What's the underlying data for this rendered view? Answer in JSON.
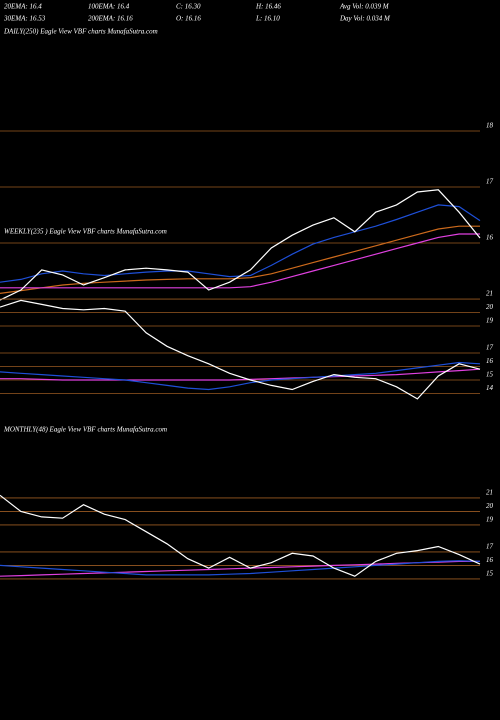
{
  "header": {
    "cells": [
      [
        "20EMA: 16.4",
        "100EMA: 16.4",
        "C: 16.30",
        "H: 16.46",
        "Avg Vol: 0.039 M"
      ],
      [
        "30EMA: 16.53",
        "200EMA: 16.16",
        "O: 16.16",
        "L: 16.10",
        "Day Vol: 0.034  M"
      ]
    ]
  },
  "chart_data": [
    {
      "type": "line",
      "title": "DAILY(250) Eagle  View  VBF charts MunafaSutra.com",
      "categories": [
        null,
        null,
        null,
        null,
        null,
        null,
        null,
        null,
        null,
        null,
        null,
        null,
        null,
        null,
        null,
        null,
        null,
        null,
        null,
        null,
        null,
        null,
        null,
        null
      ],
      "series": [
        {
          "color": "#cc6a1c",
          "values": [
            15.1,
            15.15,
            15.2,
            15.25,
            15.28,
            15.3,
            15.32,
            15.34,
            15.35,
            15.36,
            15.36,
            15.36,
            15.38,
            15.45,
            15.55,
            15.65,
            15.75,
            15.85,
            15.95,
            16.05,
            16.15,
            16.25,
            16.3,
            16.3
          ]
        },
        {
          "color": "#e040e0",
          "values": [
            15.2,
            15.2,
            15.2,
            15.2,
            15.2,
            15.2,
            15.2,
            15.2,
            15.2,
            15.2,
            15.2,
            15.2,
            15.22,
            15.3,
            15.4,
            15.5,
            15.6,
            15.7,
            15.8,
            15.9,
            16.0,
            16.1,
            16.16,
            16.16
          ]
        },
        {
          "color": "#1e4fd8",
          "values": [
            15.3,
            15.35,
            15.45,
            15.5,
            15.45,
            15.42,
            15.45,
            15.48,
            15.5,
            15.5,
            15.45,
            15.4,
            15.42,
            15.6,
            15.8,
            15.98,
            16.1,
            16.2,
            16.3,
            16.42,
            16.55,
            16.68,
            16.65,
            16.4
          ]
        },
        {
          "color": "#ffffff",
          "values": [
            14.98,
            15.16,
            15.52,
            15.43,
            15.25,
            15.38,
            15.52,
            15.55,
            15.52,
            15.48,
            15.16,
            15.3,
            15.52,
            15.91,
            16.14,
            16.32,
            16.45,
            16.2,
            16.55,
            16.68,
            16.91,
            16.95,
            16.55,
            16.09
          ]
        }
      ],
      "ylim": [
        14.75,
        19.625
      ],
      "yticks": [
        18,
        17,
        16
      ],
      "grid": true
    },
    {
      "type": "line",
      "title": "WEEKLY(235          ) Eagle  View  VBF charts MunafaSutra.com",
      "categories": [
        null,
        null,
        null,
        null,
        null,
        null,
        null,
        null,
        null,
        null,
        null,
        null,
        null,
        null,
        null,
        null,
        null,
        null,
        null,
        null,
        null,
        null,
        null,
        null
      ],
      "series": [
        {
          "color": "#e040e0",
          "values": [
            15.1,
            15.1,
            15.05,
            15.0,
            15.0,
            15.0,
            15.0,
            15.0,
            15.0,
            15.0,
            15.0,
            15.0,
            15.05,
            15.1,
            15.15,
            15.2,
            15.25,
            15.3,
            15.35,
            15.4,
            15.5,
            15.6,
            15.7,
            15.8
          ]
        },
        {
          "color": "#1e4fd8",
          "values": [
            15.6,
            15.5,
            15.4,
            15.3,
            15.2,
            15.1,
            15.0,
            14.8,
            14.6,
            14.4,
            14.3,
            14.5,
            14.8,
            15.0,
            15.1,
            15.2,
            15.3,
            15.4,
            15.5,
            15.7,
            15.9,
            16.1,
            16.3,
            16.2
          ]
        },
        {
          "color": "#ffffff",
          "values": [
            20.4,
            20.9,
            20.6,
            20.3,
            20.2,
            20.3,
            20.1,
            18.5,
            17.5,
            16.8,
            16.2,
            15.5,
            15.0,
            14.6,
            14.3,
            14.9,
            15.4,
            15.2,
            15.1,
            14.5,
            13.6,
            15.3,
            16.2,
            15.8
          ]
        }
      ],
      "ylim": [
        13.15,
        22.04
      ],
      "yticks": [
        21,
        20,
        19,
        17,
        16,
        15,
        14
      ],
      "grid": true
    },
    {
      "type": "line",
      "title": "MONTHLY(48) Eagle  View  VBF charts MunafaSutra.com",
      "categories": [
        null,
        null,
        null,
        null,
        null,
        null,
        null,
        null,
        null,
        null,
        null,
        null,
        null,
        null,
        null,
        null,
        null,
        null,
        null,
        null,
        null,
        null,
        null,
        null
      ],
      "series": [
        {
          "color": "#e040e0",
          "values": [
            15.2,
            15.25,
            15.3,
            15.35,
            15.4,
            15.45,
            15.5,
            15.55,
            15.6,
            15.65,
            15.7,
            15.75,
            15.8,
            15.85,
            15.9,
            15.95,
            16.0,
            16.05,
            16.1,
            16.15,
            16.2,
            16.25,
            16.3,
            16.3
          ]
        },
        {
          "color": "#1e4fd8",
          "values": [
            16.0,
            15.9,
            15.8,
            15.7,
            15.6,
            15.5,
            15.4,
            15.3,
            15.3,
            15.3,
            15.3,
            15.35,
            15.4,
            15.5,
            15.6,
            15.7,
            15.8,
            15.9,
            16.0,
            16.1,
            16.2,
            16.3,
            16.35,
            16.3
          ]
        },
        {
          "color": "#ffffff",
          "values": [
            21.2,
            20.0,
            19.6,
            19.5,
            20.5,
            19.8,
            19.4,
            18.5,
            17.6,
            16.5,
            15.8,
            16.6,
            15.8,
            16.2,
            16.9,
            16.7,
            15.8,
            15.2,
            16.3,
            16.9,
            17.1,
            17.4,
            16.8,
            16.1
          ]
        }
      ],
      "ylim": [
        13.44,
        22.33
      ],
      "yticks": [
        21,
        20,
        19,
        17,
        16,
        15
      ],
      "grid": true
    }
  ]
}
